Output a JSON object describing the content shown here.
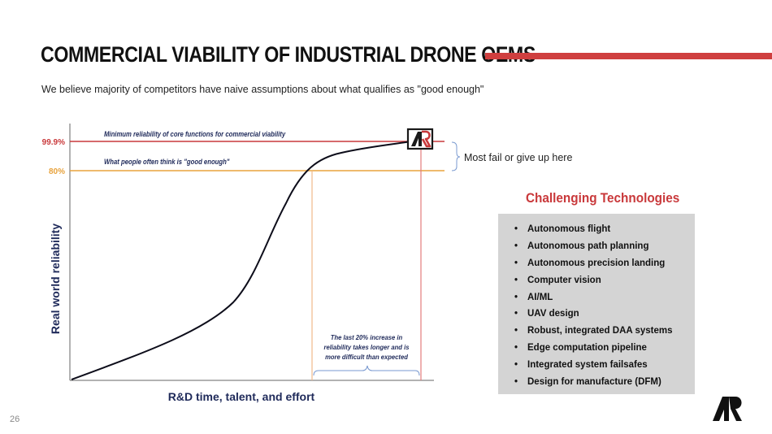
{
  "header": {
    "title": "COMMERCIAL VIABILITY OF INDUSTRIAL DRONE OEMS",
    "subtitle": "We believe majority of  competitors have naive assumptions about what qualifies as \"good enough\""
  },
  "chart": {
    "y_axis_label": "Real world reliability",
    "x_axis_label": "R&D time, talent, and effort",
    "levels": [
      {
        "label": "99.9%",
        "caption": "Minimum reliability of core functions for commercial viability",
        "color": "#c9393b"
      },
      {
        "label": "80%",
        "caption": "What people often think is \"good enough\"",
        "color": "#e8a33d"
      }
    ],
    "bracket_note": [
      "The last 20% increase in",
      "reliability takes longer and is",
      "more difficult than expected"
    ],
    "side_note": "Most fail or give up here"
  },
  "technologies": {
    "title": "Challenging Technologies",
    "bullet": "•",
    "items": [
      "Autonomous flight",
      "Autonomous path planning",
      "Autonomous precision landing",
      "Computer vision",
      "AI/ML",
      "UAV design",
      "Robust, integrated DAA systems",
      "Edge computation pipeline",
      "Integrated system failsafes",
      "Design for manufacture (DFM)"
    ]
  },
  "footer": {
    "page_number": "26"
  }
}
